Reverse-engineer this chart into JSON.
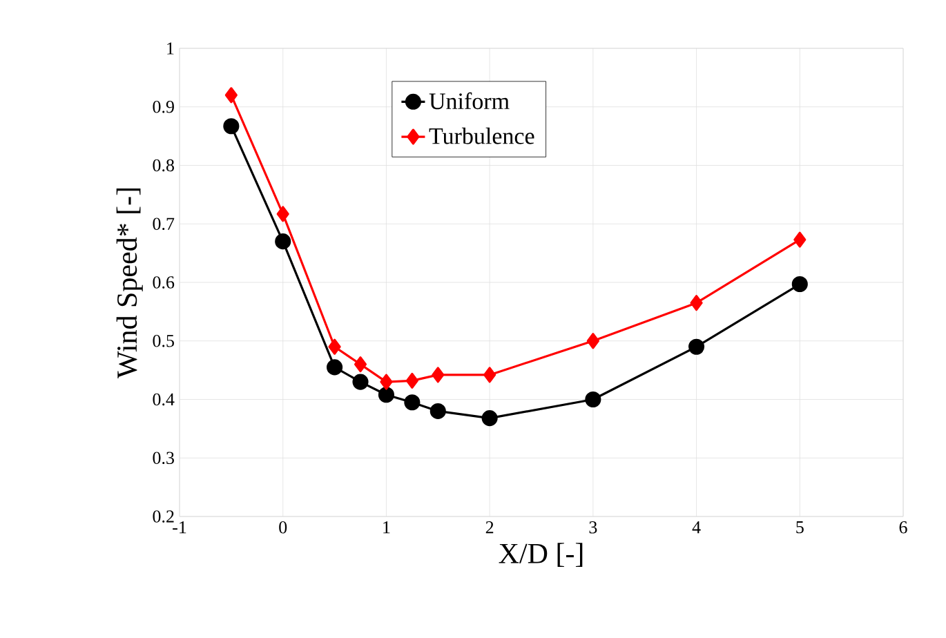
{
  "chart_data": {
    "type": "line",
    "xlabel": "X/D [-]",
    "ylabel": "Wind Speed*  [-]",
    "x": [
      -0.5,
      0,
      0.5,
      0.75,
      1,
      1.25,
      1.5,
      2,
      3,
      4,
      5
    ],
    "series": [
      {
        "name": "Uniform",
        "color": "#000000",
        "marker": "circle",
        "values": [
          0.867,
          0.67,
          0.455,
          0.43,
          0.408,
          0.395,
          0.38,
          0.368,
          0.4,
          0.49,
          0.597
        ]
      },
      {
        "name": "Turbulence",
        "color": "#ff0000",
        "marker": "diamond",
        "values": [
          0.92,
          0.717,
          0.49,
          0.46,
          0.43,
          0.432,
          0.442,
          0.442,
          0.5,
          0.565,
          0.673
        ]
      }
    ],
    "xlim": [
      -1,
      6
    ],
    "xticks": [
      -1,
      0,
      1,
      2,
      3,
      4,
      5,
      6
    ],
    "ylim": [
      0.2,
      1
    ],
    "yticks": [
      0.2,
      0.3,
      0.4,
      0.5,
      0.6,
      0.7,
      0.8,
      0.9,
      1
    ],
    "grid": true,
    "legend": "top",
    "line_style": "solid"
  }
}
